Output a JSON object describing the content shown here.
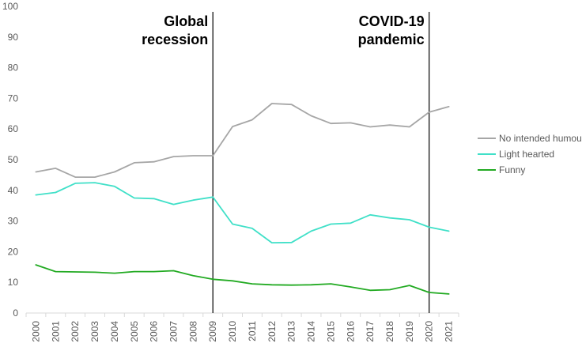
{
  "chart_data": {
    "type": "line",
    "x": [
      "2000",
      "2001",
      "2002",
      "2003",
      "2004",
      "2005",
      "2006",
      "2007",
      "2008",
      "2009",
      "2010",
      "2011",
      "2012",
      "2013",
      "2014",
      "2015",
      "2016",
      "2017",
      "2018",
      "2019",
      "2020",
      "2021"
    ],
    "ylim": [
      0,
      100
    ],
    "yticks": [
      0,
      10,
      20,
      30,
      40,
      50,
      60,
      70,
      80,
      90,
      100
    ],
    "grid": false,
    "legend_position": "right",
    "series": [
      {
        "name": "No intended humour",
        "color": "#a6a6a6",
        "values": [
          46,
          47.2,
          44.3,
          44.3,
          46,
          49,
          49.3,
          51,
          51.3,
          51.3,
          60.8,
          63,
          68.3,
          68,
          64.3,
          61.8,
          62,
          60.7,
          61.3,
          60.7,
          65.5,
          67.3
        ]
      },
      {
        "name": "Light hearted",
        "color": "#40e0c8",
        "values": [
          38.5,
          39.3,
          42.3,
          42.5,
          41.3,
          37.5,
          37.3,
          35.4,
          36.8,
          37.8,
          29,
          27.6,
          22.9,
          23,
          26.7,
          29,
          29.3,
          32,
          31,
          30.4,
          28,
          26.7
        ]
      },
      {
        "name": "Funny",
        "color": "#22aa22",
        "values": [
          15.7,
          13.5,
          13.4,
          13.3,
          13,
          13.5,
          13.5,
          13.8,
          12.2,
          11,
          10.5,
          9.5,
          9.2,
          9.1,
          9.2,
          9.5,
          8.5,
          7.4,
          7.6,
          9,
          6.7,
          6.2
        ]
      }
    ],
    "annotations": [
      {
        "x": "2009",
        "lines": [
          "Global",
          "recession"
        ],
        "align": "right"
      },
      {
        "x": "2020",
        "lines": [
          "COVID-19",
          "pandemic"
        ],
        "align": "right"
      }
    ]
  }
}
